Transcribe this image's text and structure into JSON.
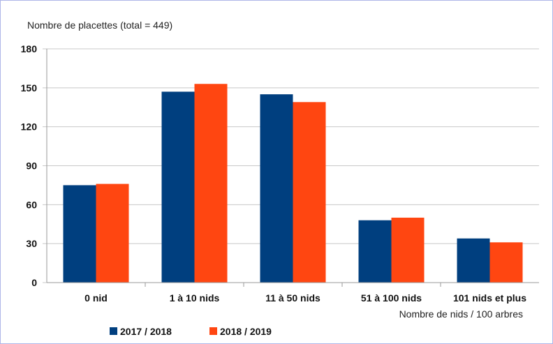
{
  "chart_data": {
    "type": "bar",
    "title": "",
    "ylabel": "Nombre de placettes (total = 449)",
    "xlabel": "Nombre de nids / 100 arbres",
    "categories": [
      "0 nid",
      "1 à 10 nids",
      "11 à 50 nids",
      "51 à 100 nids",
      "101 nids et plus"
    ],
    "series": [
      {
        "name": "2017 / 2018",
        "color": "#003f7f",
        "values": [
          75,
          147,
          145,
          48,
          34
        ]
      },
      {
        "name": "2018 / 2019",
        "color": "#ff4611",
        "values": [
          76,
          153,
          139,
          50,
          31
        ]
      }
    ],
    "yticks": [
      "0",
      "30",
      "60",
      "90",
      "120",
      "150",
      "180"
    ],
    "ylim": [
      0,
      180
    ],
    "grid": true,
    "legend": "bottom-left"
  }
}
